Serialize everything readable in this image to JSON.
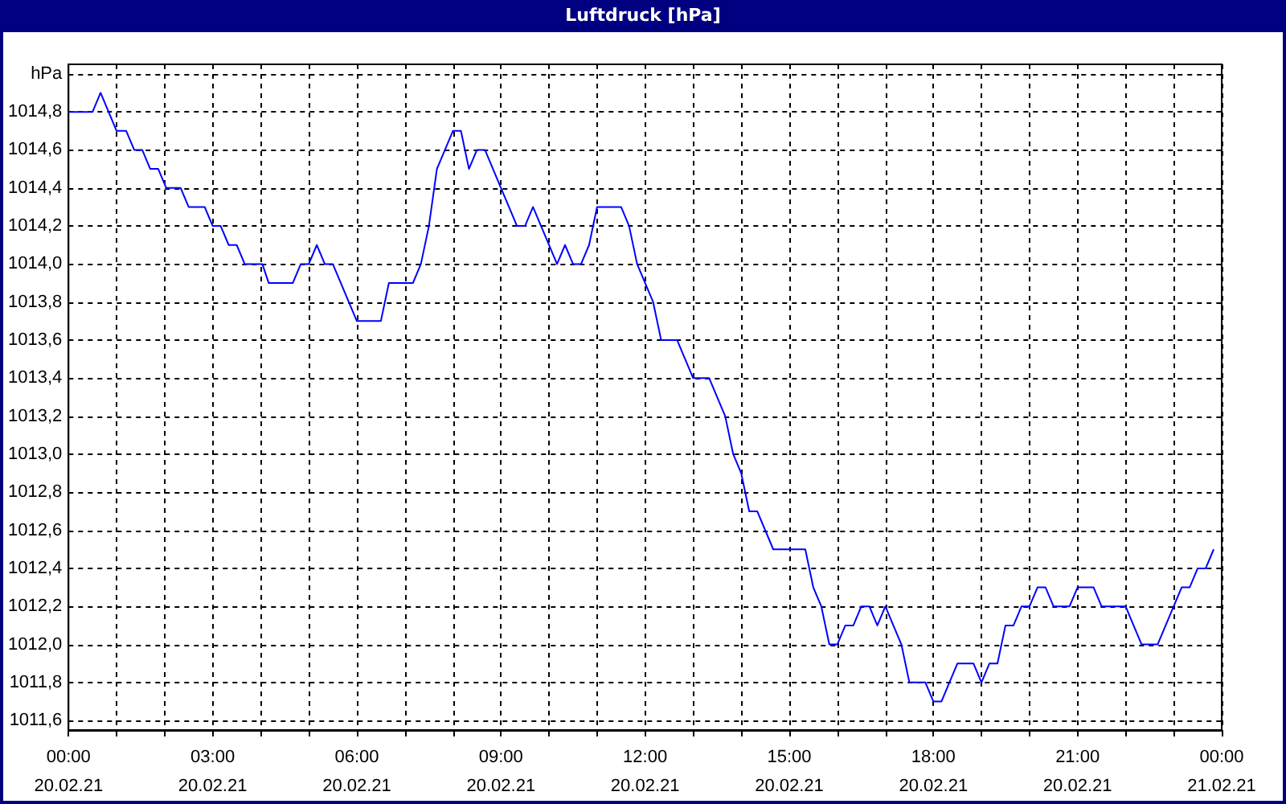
{
  "chart_data": {
    "type": "line",
    "title": "Luftdruck [hPa]",
    "x": [
      "--02-20T00:00",
      "--02-20T00:30",
      "--02-20T00:40",
      "--02-20T01:00",
      "--02-20T01:12",
      "--02-20T01:22",
      "--02-20T01:32",
      "--02-20T01:42",
      "--02-20T01:52",
      "--02-20T02:02",
      "--02-20T02:20",
      "--02-20T02:30",
      "--02-20T02:50",
      "--02-20T03:00",
      "--02-20T03:10",
      "--02-20T03:20",
      "--02-20T03:30",
      "--02-20T03:40",
      "--02-20T04:02",
      "--02-20T04:10",
      "--02-20T04:40",
      "--02-20T04:50",
      "--02-20T05:00",
      "--02-20T05:10",
      "--02-20T05:20",
      "--02-20T05:30",
      "--02-20T06:00",
      "--02-20T06:30",
      "--02-20T06:40",
      "--02-20T07:10",
      "--02-20T07:20",
      "--02-20T07:30",
      "--02-20T07:40",
      "--02-20T08:00",
      "--02-20T08:10",
      "--02-20T08:20",
      "--02-20T08:30",
      "--02-20T08:40",
      "--02-20T09:00",
      "--02-20T09:20",
      "--02-20T09:30",
      "--02-20T09:40",
      "--02-20T10:10",
      "--02-20T10:20",
      "--02-20T10:30",
      "--02-20T10:40",
      "--02-20T10:50",
      "--02-20T11:00",
      "--02-20T11:30",
      "--02-20T11:40",
      "--02-20T11:50",
      "--02-20T12:10",
      "--02-20T12:20",
      "--02-20T12:40",
      "--02-20T13:00",
      "--02-20T13:20",
      "--02-20T13:40",
      "--02-20T13:50",
      "--02-20T14:00",
      "--02-20T14:10",
      "--02-20T14:20",
      "--02-20T14:40",
      "--02-20T15:20",
      "--02-20T15:30",
      "--02-20T15:40",
      "--02-20T15:50",
      "--02-20T16:00",
      "--02-20T16:10",
      "--02-20T16:20",
      "--02-20T16:30",
      "--02-20T16:40",
      "--02-20T16:50",
      "--02-20T17:00",
      "--02-20T17:20",
      "--02-20T17:30",
      "--02-20T17:50",
      "--02-20T18:00",
      "--02-20T18:10",
      "--02-20T18:30",
      "--02-20T18:50",
      "--02-20T19:00",
      "--02-20T19:10",
      "--02-20T19:20",
      "--02-20T19:30",
      "--02-20T19:40",
      "--02-20T19:50",
      "--02-20T20:00",
      "--02-20T20:10",
      "--02-20T20:20",
      "--02-20T20:30",
      "--02-20T20:50",
      "--02-20T21:00",
      "--02-20T21:20",
      "--02-20T21:30",
      "--02-20T22:00",
      "--02-20T22:20",
      "--02-20T22:40",
      "--02-20T23:10",
      "--02-20T23:20",
      "--02-20T23:30",
      "--02-20T23:40",
      "--02-20T23:50"
    ],
    "series": [
      {
        "color": "#0000ff",
        "values": [
          1014.8,
          1014.8,
          1014.9,
          1014.7,
          1014.7,
          1014.6,
          1014.6,
          1014.5,
          1014.5,
          1014.4,
          1014.4,
          1014.3,
          1014.3,
          1014.2,
          1014.2,
          1014.1,
          1014.1,
          1014.0,
          1014.0,
          1013.9,
          1013.9,
          1014.0,
          1014.0,
          1014.1,
          1014.0,
          1014.0,
          1013.7,
          1013.7,
          1013.9,
          1013.9,
          1014.0,
          1014.2,
          1014.5,
          1014.7,
          1014.7,
          1014.5,
          1014.6,
          1014.6,
          1014.4,
          1014.2,
          1014.2,
          1014.3,
          1014.0,
          1014.1,
          1014.0,
          1014.0,
          1014.1,
          1014.3,
          1014.3,
          1014.2,
          1014.0,
          1013.8,
          1013.6,
          1013.6,
          1013.4,
          1013.4,
          1013.2,
          1013.0,
          1012.9,
          1012.7,
          1012.7,
          1012.5,
          1012.5,
          1012.3,
          1012.2,
          1012.0,
          1012.0,
          1012.1,
          1012.1,
          1012.2,
          1012.2,
          1012.1,
          1012.2,
          1012.0,
          1011.8,
          1011.8,
          1011.7,
          1011.7,
          1011.9,
          1011.9,
          1011.8,
          1011.9,
          1011.9,
          1012.1,
          1012.1,
          1012.2,
          1012.2,
          1012.3,
          1012.3,
          1012.2,
          1012.2,
          1012.3,
          1012.3,
          1012.2,
          1012.2,
          1012.0,
          1012.0,
          1012.3,
          1012.3,
          1012.4,
          1012.4,
          1012.5
        ]
      }
    ],
    "xlim": [
      "--02-20T00:00",
      "--02-21T00:00"
    ],
    "xticks": [
      {
        "value": "--02-20T00:00",
        "label": "00:00\n20.02.21"
      },
      {
        "value": "--02-20T01:00",
        "label": null
      },
      {
        "value": "--02-20T02:00",
        "label": null
      },
      {
        "value": "--02-20T03:00",
        "label": "03:00\n20.02.21"
      },
      {
        "value": "--02-20T04:00",
        "label": null
      },
      {
        "value": "--02-20T05:00",
        "label": null
      },
      {
        "value": "--02-20T06:00",
        "label": "06:00\n20.02.21"
      },
      {
        "value": "--02-20T07:00",
        "label": null
      },
      {
        "value": "--02-20T08:00",
        "label": null
      },
      {
        "value": "--02-20T09:00",
        "label": "09:00\n20.02.21"
      },
      {
        "value": "--02-20T10:00",
        "label": null
      },
      {
        "value": "--02-20T11:00",
        "label": null
      },
      {
        "value": "--02-20T12:00",
        "label": "12:00\n20.02.21"
      },
      {
        "value": "--02-20T13:00",
        "label": null
      },
      {
        "value": "--02-20T14:00",
        "label": null
      },
      {
        "value": "--02-20T15:00",
        "label": "15:00\n20.02.21"
      },
      {
        "value": "--02-20T16:00",
        "label": null
      },
      {
        "value": "--02-20T17:00",
        "label": null
      },
      {
        "value": "--02-20T18:00",
        "label": "18:00\n20.02.21"
      },
      {
        "value": "--02-20T19:00",
        "label": null
      },
      {
        "value": "--02-20T20:00",
        "label": null
      },
      {
        "value": "--02-20T21:00",
        "label": "21:00\n20.02.21"
      },
      {
        "value": "--02-20T22:00",
        "label": null
      },
      {
        "value": "--02-20T23:00",
        "label": null
      },
      {
        "value": "--02-21T00:00",
        "label": "00:00\n21.02.21"
      }
    ],
    "ylim": [
      1011.55,
      1015.05
    ],
    "yticks": [
      {
        "value": 1011.6,
        "label": "1011,6"
      },
      {
        "value": 1011.8,
        "label": "1011,8"
      },
      {
        "value": 1012.0,
        "label": "1012,0"
      },
      {
        "value": 1012.2,
        "label": "1012,2"
      },
      {
        "value": 1012.4,
        "label": "1012,4"
      },
      {
        "value": 1012.6,
        "label": "1012,6"
      },
      {
        "value": 1012.8,
        "label": "1012,8"
      },
      {
        "value": 1013.0,
        "label": "1013,0"
      },
      {
        "value": 1013.2,
        "label": "1013,2"
      },
      {
        "value": 1013.4,
        "label": "1013,4"
      },
      {
        "value": 1013.6,
        "label": "1013,6"
      },
      {
        "value": 1013.8,
        "label": "1013,8"
      },
      {
        "value": 1014.0,
        "label": "1014,0"
      },
      {
        "value": 1014.2,
        "label": "1014,2"
      },
      {
        "value": 1014.4,
        "label": "1014,4"
      },
      {
        "value": 1014.6,
        "label": "1014,6"
      },
      {
        "value": 1014.8,
        "label": "1014,8"
      },
      {
        "value": 1015.0,
        "label": "hPa"
      }
    ],
    "grid": true,
    "marker": "none",
    "line_style": "solid"
  }
}
